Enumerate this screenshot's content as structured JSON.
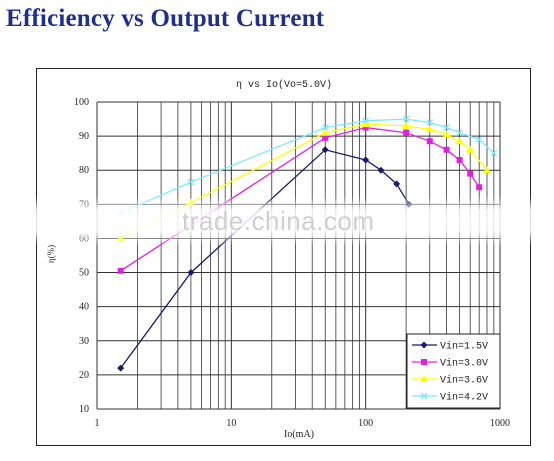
{
  "page": {
    "title": "Efficiency vs Output Current"
  },
  "chart_data": {
    "type": "line",
    "title": "η  vs  Io(Vo=5.0V)",
    "xlabel": "Io(mA)",
    "ylabel": "η(%)",
    "xscale": "log",
    "xlim": [
      1,
      1000
    ],
    "ylim": [
      10,
      100
    ],
    "x_ticks": [
      "1",
      "10",
      "100",
      "1000"
    ],
    "y_ticks": [
      "10",
      "20",
      "30",
      "40",
      "50",
      "60",
      "70",
      "80",
      "90",
      "100"
    ],
    "grid": true,
    "legend_position": "bottom-right",
    "watermark": "trade.china.com",
    "series": [
      {
        "name": "Vin=1.5V",
        "color": "#1a1a6e",
        "marker": "diamond",
        "x": [
          1.5,
          5,
          50,
          100,
          130,
          170,
          210
        ],
        "y": [
          22,
          50,
          86,
          83,
          80,
          76,
          70
        ]
      },
      {
        "name": "Vin=3.0V",
        "color": "#e020e0",
        "marker": "square",
        "x": [
          1.5,
          50,
          100,
          200,
          300,
          400,
          500,
          600,
          700
        ],
        "y": [
          50.5,
          89.5,
          92.5,
          91,
          88.5,
          86,
          83,
          79,
          75
        ]
      },
      {
        "name": "Vin=3.6V",
        "color": "#ffff00",
        "marker": "triangle",
        "x": [
          1.5,
          5,
          50,
          100,
          200,
          300,
          400,
          500,
          600,
          800
        ],
        "y": [
          60,
          70.5,
          91,
          93.5,
          93,
          92,
          90.5,
          88.5,
          86,
          80
        ]
      },
      {
        "name": "Vin=4.2V",
        "color": "#7fe8ff",
        "marker": "cross",
        "x": [
          1.5,
          5,
          50,
          100,
          200,
          300,
          400,
          500,
          700,
          900
        ],
        "y": [
          67.5,
          76.5,
          92.5,
          94.5,
          95,
          94,
          92.5,
          91,
          89,
          85
        ]
      }
    ]
  }
}
